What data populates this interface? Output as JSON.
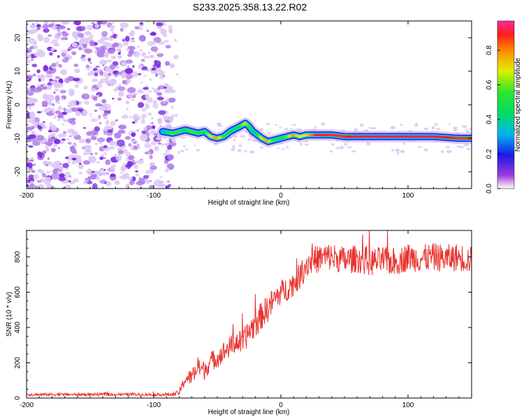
{
  "title": "S233.2025.358.13.22.R02",
  "colorbar": {
    "label": "Normalized spectral amplitude",
    "ticks": [
      "0.0",
      "0.2",
      "0.4",
      "0.6",
      "0.8"
    ],
    "tick_values": [
      0.0,
      0.2,
      0.4,
      0.6,
      0.8
    ],
    "range": [
      0,
      0.97
    ]
  },
  "chart_data": [
    {
      "type": "heatmap",
      "title": "S233.2025.358.13.22.R02",
      "xlabel": "Height of straight line (km)",
      "ylabel": "Frequency (Hz)",
      "xlim": [
        -200,
        150
      ],
      "ylim": [
        -25,
        25
      ],
      "x_ticks": [
        -200,
        -100,
        0,
        100
      ],
      "y_ticks": [
        -20,
        -10,
        0,
        10,
        20
      ],
      "x_tick_labels": [
        "-200",
        "-100",
        "0",
        "100"
      ],
      "y_tick_labels": [
        "-20",
        "-10",
        "0",
        "10",
        "20"
      ],
      "noise_region_x": [
        -200,
        -85
      ],
      "doppler_line": {
        "x": [
          -93,
          -85,
          -80,
          -75,
          -70,
          -65,
          -60,
          -55,
          -50,
          -45,
          -40,
          -35,
          -30,
          -28,
          -25,
          -22,
          -20,
          -15,
          -10,
          -5,
          0,
          5,
          10,
          15,
          20,
          30,
          40,
          50,
          60,
          80,
          100,
          120,
          140,
          150
        ],
        "freq_hz": [
          -8,
          -8.5,
          -8,
          -7.5,
          -8,
          -8.5,
          -8,
          -9.5,
          -10,
          -9.5,
          -8,
          -7,
          -6,
          -5.5,
          -6.5,
          -8,
          -8.5,
          -10,
          -11,
          -10.5,
          -10,
          -9.5,
          -9,
          -9.5,
          -9,
          -9,
          -9,
          -9.5,
          -9.5,
          -9.5,
          -9.5,
          -9.5,
          -10,
          -10
        ],
        "amplitude": [
          0.3,
          0.6,
          0.55,
          0.5,
          0.6,
          0.55,
          0.5,
          0.7,
          0.8,
          0.6,
          0.5,
          0.45,
          0.6,
          0.7,
          0.6,
          0.45,
          0.4,
          0.7,
          0.8,
          0.55,
          0.5,
          0.6,
          0.8,
          0.7,
          0.7,
          0.95,
          0.9,
          0.9,
          0.95,
          0.95,
          0.95,
          0.95,
          0.9,
          0.9
        ]
      }
    },
    {
      "type": "line",
      "xlabel": "Height of straight line (km)",
      "ylabel": "SNR (10 * v/v)",
      "xlim": [
        -200,
        150
      ],
      "ylim": [
        0,
        950
      ],
      "x_ticks": [
        -200,
        -100,
        0,
        100
      ],
      "y_ticks": [
        0,
        200,
        400,
        600,
        800
      ],
      "x_tick_labels": [
        "-200",
        "-100",
        "0",
        "100"
      ],
      "y_tick_labels": [
        "0",
        "200",
        "400",
        "600",
        "800"
      ],
      "series": [
        {
          "name": "SNR",
          "color": "#e8322d",
          "x": [
            -200,
            -180,
            -160,
            -140,
            -120,
            -100,
            -85,
            -80,
            -75,
            -70,
            -65,
            -60,
            -55,
            -50,
            -45,
            -40,
            -35,
            -30,
            -25,
            -20,
            -15,
            -10,
            -5,
            0,
            5,
            10,
            15,
            20,
            25,
            30,
            35,
            40,
            50,
            60,
            70,
            80,
            90,
            100,
            110,
            120,
            130,
            140,
            150
          ],
          "values": [
            20,
            20,
            20,
            20,
            20,
            20,
            20,
            30,
            110,
            120,
            170,
            160,
            210,
            230,
            260,
            290,
            320,
            310,
            380,
            420,
            470,
            510,
            560,
            600,
            620,
            650,
            690,
            760,
            780,
            790,
            800,
            800,
            780,
            790,
            770,
            780,
            770,
            800,
            790,
            800,
            790,
            800,
            780
          ],
          "noise_amplitude": [
            8,
            8,
            8,
            8,
            8,
            8,
            10,
            15,
            40,
            45,
            50,
            55,
            55,
            60,
            60,
            60,
            65,
            70,
            75,
            80,
            80,
            80,
            75,
            70,
            70,
            70,
            75,
            80,
            80,
            80,
            80,
            80,
            80,
            80,
            80,
            80,
            80,
            80,
            80,
            80,
            80,
            80,
            80
          ]
        }
      ]
    }
  ]
}
